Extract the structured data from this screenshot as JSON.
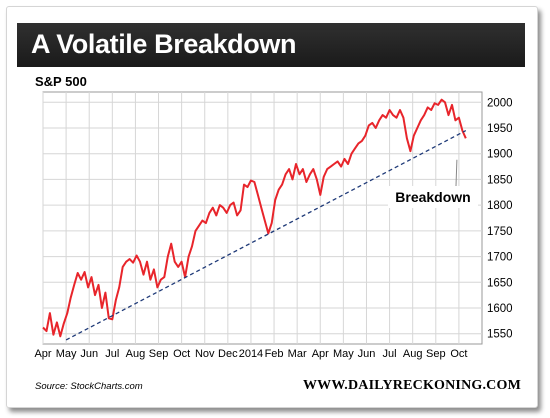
{
  "header": {
    "title": "A Volatile Breakdown",
    "subtitle": "S&P 500"
  },
  "footer": {
    "source": "Source: StockCharts.com",
    "brand": "WWW.DAILYRECKONING.COM"
  },
  "colors": {
    "series": "#e8252b",
    "trendline": "#1f3a78",
    "grid": "#d6d6d6",
    "title_bar": "#222222"
  },
  "chart_data": {
    "type": "line",
    "title": "A Volatile Breakdown",
    "subtitle": "S&P 500",
    "xlabel": "",
    "ylabel": "",
    "ylim": [
      1530,
      2020
    ],
    "xlim": [
      0,
      19
    ],
    "y_ticks": [
      1550,
      1600,
      1650,
      1700,
      1750,
      1800,
      1850,
      1900,
      1950,
      2000
    ],
    "x_ticks": [
      {
        "x": 0,
        "label": "Apr"
      },
      {
        "x": 1,
        "label": "May"
      },
      {
        "x": 2,
        "label": "Jun"
      },
      {
        "x": 3,
        "label": "Jul"
      },
      {
        "x": 4,
        "label": "Aug"
      },
      {
        "x": 5,
        "label": "Sep"
      },
      {
        "x": 6,
        "label": "Oct"
      },
      {
        "x": 7,
        "label": "Nov"
      },
      {
        "x": 8,
        "label": "Dec"
      },
      {
        "x": 9,
        "label": "2014"
      },
      {
        "x": 10,
        "label": "Feb"
      },
      {
        "x": 11,
        "label": "Mar"
      },
      {
        "x": 12,
        "label": "Apr"
      },
      {
        "x": 13,
        "label": "May"
      },
      {
        "x": 14,
        "label": "Jun"
      },
      {
        "x": 15,
        "label": "Jul"
      },
      {
        "x": 16,
        "label": "Aug"
      },
      {
        "x": 17,
        "label": "Sep"
      },
      {
        "x": 18,
        "label": "Oct"
      }
    ],
    "grid": true,
    "y_axis_side": "right",
    "series": [
      {
        "style": "solid",
        "x": [
          0,
          0.15,
          0.3,
          0.45,
          0.6,
          0.75,
          0.9,
          1.05,
          1.2,
          1.35,
          1.5,
          1.65,
          1.8,
          1.95,
          2.1,
          2.25,
          2.4,
          2.55,
          2.7,
          2.85,
          3.0,
          3.15,
          3.3,
          3.45,
          3.6,
          3.75,
          3.9,
          4.05,
          4.2,
          4.35,
          4.5,
          4.65,
          4.8,
          4.95,
          5.1,
          5.25,
          5.4,
          5.55,
          5.7,
          5.85,
          6.0,
          6.15,
          6.3,
          6.45,
          6.6,
          6.75,
          6.9,
          7.05,
          7.2,
          7.35,
          7.5,
          7.65,
          7.8,
          7.95,
          8.1,
          8.25,
          8.4,
          8.55,
          8.7,
          8.85,
          9.0,
          9.15,
          9.3,
          9.45,
          9.6,
          9.75,
          9.9,
          10.05,
          10.2,
          10.35,
          10.5,
          10.65,
          10.8,
          10.95,
          11.1,
          11.25,
          11.4,
          11.55,
          11.7,
          11.85,
          12.0,
          12.15,
          12.3,
          12.45,
          12.6,
          12.75,
          12.9,
          13.05,
          13.2,
          13.35,
          13.5,
          13.65,
          13.8,
          13.95,
          14.1,
          14.25,
          14.4,
          14.55,
          14.7,
          14.85,
          15.0,
          15.15,
          15.3,
          15.45,
          15.6,
          15.75,
          15.9,
          16.05,
          16.2,
          16.35,
          16.5,
          16.65,
          16.8,
          16.95,
          17.1,
          17.25,
          17.4,
          17.55,
          17.7,
          17.85,
          18.0,
          18.15,
          18.3
        ],
        "values": [
          1562,
          1555,
          1590,
          1548,
          1572,
          1545,
          1570,
          1590,
          1620,
          1645,
          1668,
          1655,
          1670,
          1640,
          1660,
          1625,
          1645,
          1600,
          1630,
          1580,
          1578,
          1615,
          1640,
          1680,
          1690,
          1695,
          1688,
          1702,
          1690,
          1665,
          1690,
          1655,
          1675,
          1640,
          1655,
          1660,
          1700,
          1725,
          1690,
          1680,
          1690,
          1660,
          1700,
          1720,
          1750,
          1760,
          1770,
          1765,
          1785,
          1795,
          1780,
          1800,
          1795,
          1785,
          1800,
          1805,
          1780,
          1790,
          1840,
          1835,
          1848,
          1845,
          1820,
          1795,
          1770,
          1745,
          1765,
          1810,
          1830,
          1840,
          1860,
          1870,
          1850,
          1880,
          1860,
          1870,
          1845,
          1860,
          1870,
          1850,
          1820,
          1855,
          1870,
          1875,
          1880,
          1885,
          1875,
          1890,
          1880,
          1900,
          1910,
          1920,
          1925,
          1935,
          1955,
          1960,
          1950,
          1965,
          1975,
          1970,
          1985,
          1975,
          1970,
          1985,
          1970,
          1930,
          1905,
          1935,
          1950,
          1965,
          1975,
          1990,
          1985,
          1998,
          1995,
          2005,
          2000,
          1975,
          1995,
          1965,
          1970,
          1945,
          1930
        ]
      },
      {
        "style": "dashed",
        "x": [
          1,
          18.3
        ],
        "values": [
          1538,
          1945
        ]
      }
    ],
    "annotations": [
      {
        "text": "Breakdown",
        "points_to": {
          "x": 18.0,
          "y": 1900
        }
      }
    ]
  }
}
